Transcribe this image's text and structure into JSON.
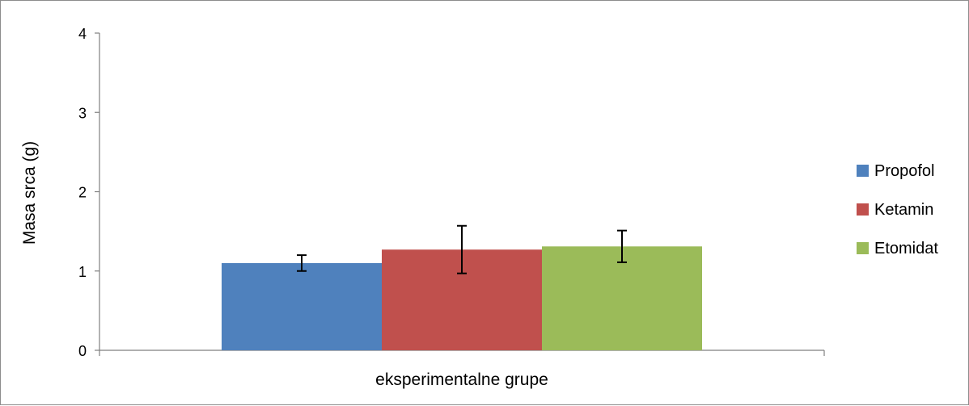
{
  "chart_data": {
    "type": "bar",
    "title": "",
    "xlabel": "eksperimentalne grupe",
    "ylabel": "Masa  srca  (g)",
    "ylim": [
      0,
      4
    ],
    "yticks": [
      "0",
      "1",
      "2",
      "3",
      "4"
    ],
    "grid": false,
    "legend_position": "right",
    "categories": [
      ""
    ],
    "series": [
      {
        "name": "Propofol",
        "values": [
          1.1
        ],
        "error": [
          0.1
        ],
        "color": "#4f81bd"
      },
      {
        "name": "Ketamin",
        "values": [
          1.27
        ],
        "error": [
          0.3
        ],
        "color": "#c0504d"
      },
      {
        "name": "Etomidat",
        "values": [
          1.31
        ],
        "error": [
          0.2
        ],
        "color": "#9bbb59"
      }
    ]
  }
}
